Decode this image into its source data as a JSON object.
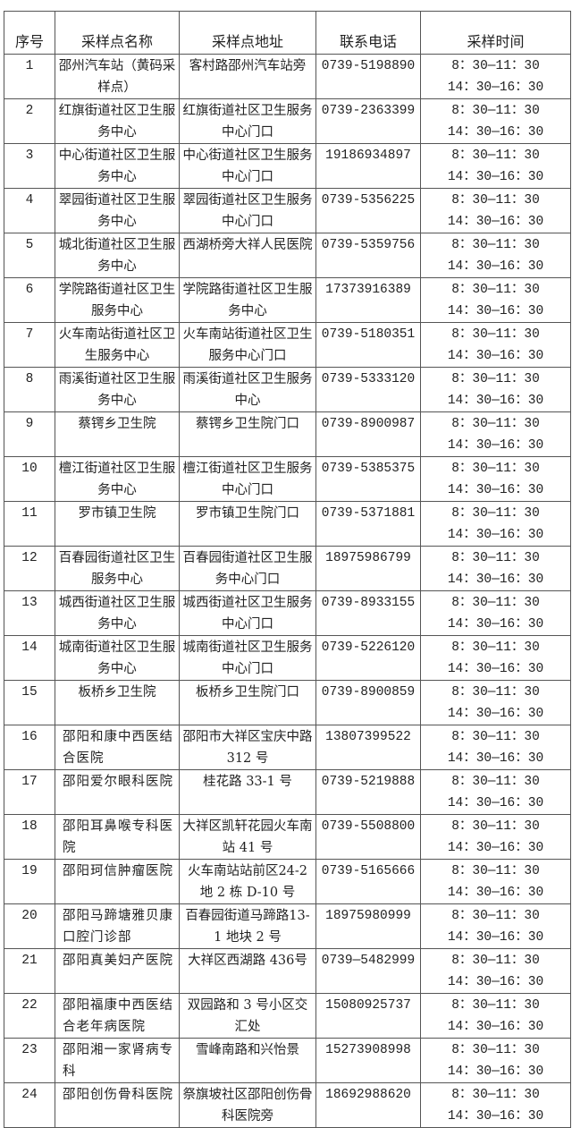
{
  "headers": [
    "序号",
    "采样点名称",
    "采样点地址",
    "联系电话",
    "采样时间"
  ],
  "time_am": "8：30—11：30",
  "time_pm": "14：30—16：30",
  "rows": [
    {
      "no": "1",
      "name": "邵州汽车站（黄码采样点）",
      "address": "客村路邵州汽车站旁",
      "phone": "0739-5198890"
    },
    {
      "no": "2",
      "name": "红旗街道社区卫生服务中心",
      "address": "红旗街道社区卫生服务中心门口",
      "phone": "0739-2363399"
    },
    {
      "no": "3",
      "name": "中心街道社区卫生服务中心",
      "address": "中心街道社区卫生服务中心门口",
      "phone": "19186934897"
    },
    {
      "no": "4",
      "name": "翠园街道社区卫生服务中心",
      "address": "翠园街道社区卫生服务中心门口",
      "phone": "0739-5356225"
    },
    {
      "no": "5",
      "name": "城北街道社区卫生服务中心",
      "address": "西湖桥旁大祥人民医院",
      "phone": "0739-5359756"
    },
    {
      "no": "6",
      "name": "学院路街道社区卫生服务中心",
      "address": "学院路街道社区卫生服务中心",
      "phone": "17373916389"
    },
    {
      "no": "7",
      "name": "火车南站街道社区卫生服务中心",
      "address": "火车南站街道社区卫生服务中心门口",
      "phone": "0739-5180351"
    },
    {
      "no": "8",
      "name": "雨溪街道社区卫生服务中心",
      "address": "雨溪街道社区卫生服务中心",
      "phone": "0739-5333120"
    },
    {
      "no": "9",
      "name": "蔡锷乡卫生院",
      "address": "蔡锷乡卫生院门口",
      "phone": "0739-8900987"
    },
    {
      "no": "10",
      "name": "檀江街道社区卫生服务中心",
      "address": "檀江街道社区卫生服务中心门口",
      "phone": "0739-5385375"
    },
    {
      "no": "11",
      "name": "罗市镇卫生院",
      "address": "罗市镇卫生院门口",
      "phone": "0739-5371881"
    },
    {
      "no": "12",
      "name": "百春园街道社区卫生服务中心",
      "address": "百春园街道社区卫生服务中心门口",
      "phone": "18975986799"
    },
    {
      "no": "13",
      "name": "城西街道社区卫生服务中心",
      "address": "城西街道社区卫生服务中心门口",
      "phone": "0739-8933155"
    },
    {
      "no": "14",
      "name": "城南街道社区卫生服务中心",
      "address": "城南街道社区卫生服务中心门口",
      "phone": "0739-5226120"
    },
    {
      "no": "15",
      "name": "板桥乡卫生院",
      "address": "板桥乡卫生院门口",
      "phone": "0739-8900859"
    },
    {
      "no": "16",
      "name": "邵阳和康中西医结合医院",
      "address": "邵阳市大祥区宝庆中路 312 号",
      "phone": "13807399522"
    },
    {
      "no": "17",
      "name": "邵阳爱尔眼科医院",
      "address": "桂花路 33-1 号",
      "phone": "0739-5219888"
    },
    {
      "no": "18",
      "name": "邵阳耳鼻喉专科医院",
      "address": "大祥区凯轩花园火车南站 41 号",
      "phone": "0739-5508800"
    },
    {
      "no": "19",
      "name": "邵阳珂信肿瘤医院",
      "address": "火车南站站前区24-2 地 2 栋 D-10 号",
      "phone": "0739-5165666"
    },
    {
      "no": "20",
      "name": "邵阳马蹄塘雅贝康口腔门诊部",
      "address": "百春园街道马蹄路13-1 地块 2 号",
      "phone": "18975980999"
    },
    {
      "no": "21",
      "name": "邵阳真美妇产医院",
      "address": "大祥区西湖路 436号",
      "phone": "0739—5482999"
    },
    {
      "no": "22",
      "name": "邵阳福康中西医结合老年病医院",
      "address": "双园路和 3 号小区交汇处",
      "phone": "15080925737"
    },
    {
      "no": "23",
      "name": "邵阳湘一家肾病专科",
      "address": "雪峰南路和兴怡景",
      "phone": "15273908998"
    },
    {
      "no": "24",
      "name": "邵阳创伤骨科医院",
      "address": "祭旗坡社区邵阳创伤骨科医院旁",
      "phone": "18692988620"
    }
  ]
}
